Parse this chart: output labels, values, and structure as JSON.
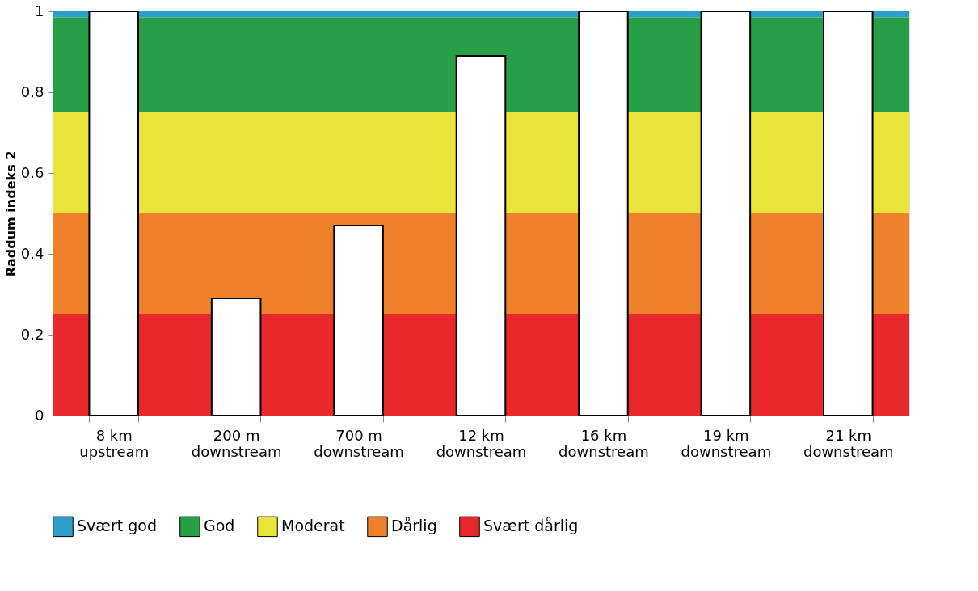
{
  "chart_data": {
    "type": "bar",
    "ylabel": "Raddum indeks 2",
    "categories": [
      "8 km\nupstream",
      "200 m\ndownstream",
      "700 m\ndownstream",
      "12 km\ndownstream",
      "16 km\ndownstream",
      "19 km\ndownstream",
      "21 km\ndownstream"
    ],
    "series": [
      {
        "color": "#ffffff",
        "values": [
          1,
          0.29,
          0.47,
          0.89,
          1,
          1,
          1
        ]
      }
    ],
    "ylim": [
      0,
      1
    ],
    "yticks": [
      0,
      0.2,
      0.4,
      0.6,
      0.8,
      1
    ],
    "bands": [
      {
        "axis": "y",
        "from": 0.985,
        "to": 1,
        "label": "Svært god",
        "color": "#2b9fc8"
      },
      {
        "axis": "y",
        "from": 0.75,
        "to": 0.985,
        "label": "God",
        "color": "#279f48"
      },
      {
        "axis": "y",
        "from": 0.5,
        "to": 0.75,
        "label": "Moderat",
        "color": "#e8e43a"
      },
      {
        "axis": "y",
        "from": 0.25,
        "to": 0.5,
        "label": "Dårlig",
        "color": "#ef812c"
      },
      {
        "axis": "y",
        "from": 0,
        "to": 0.25,
        "label": "Svært dårlig",
        "color": "#e8282a"
      }
    ],
    "legend": "bottom"
  }
}
